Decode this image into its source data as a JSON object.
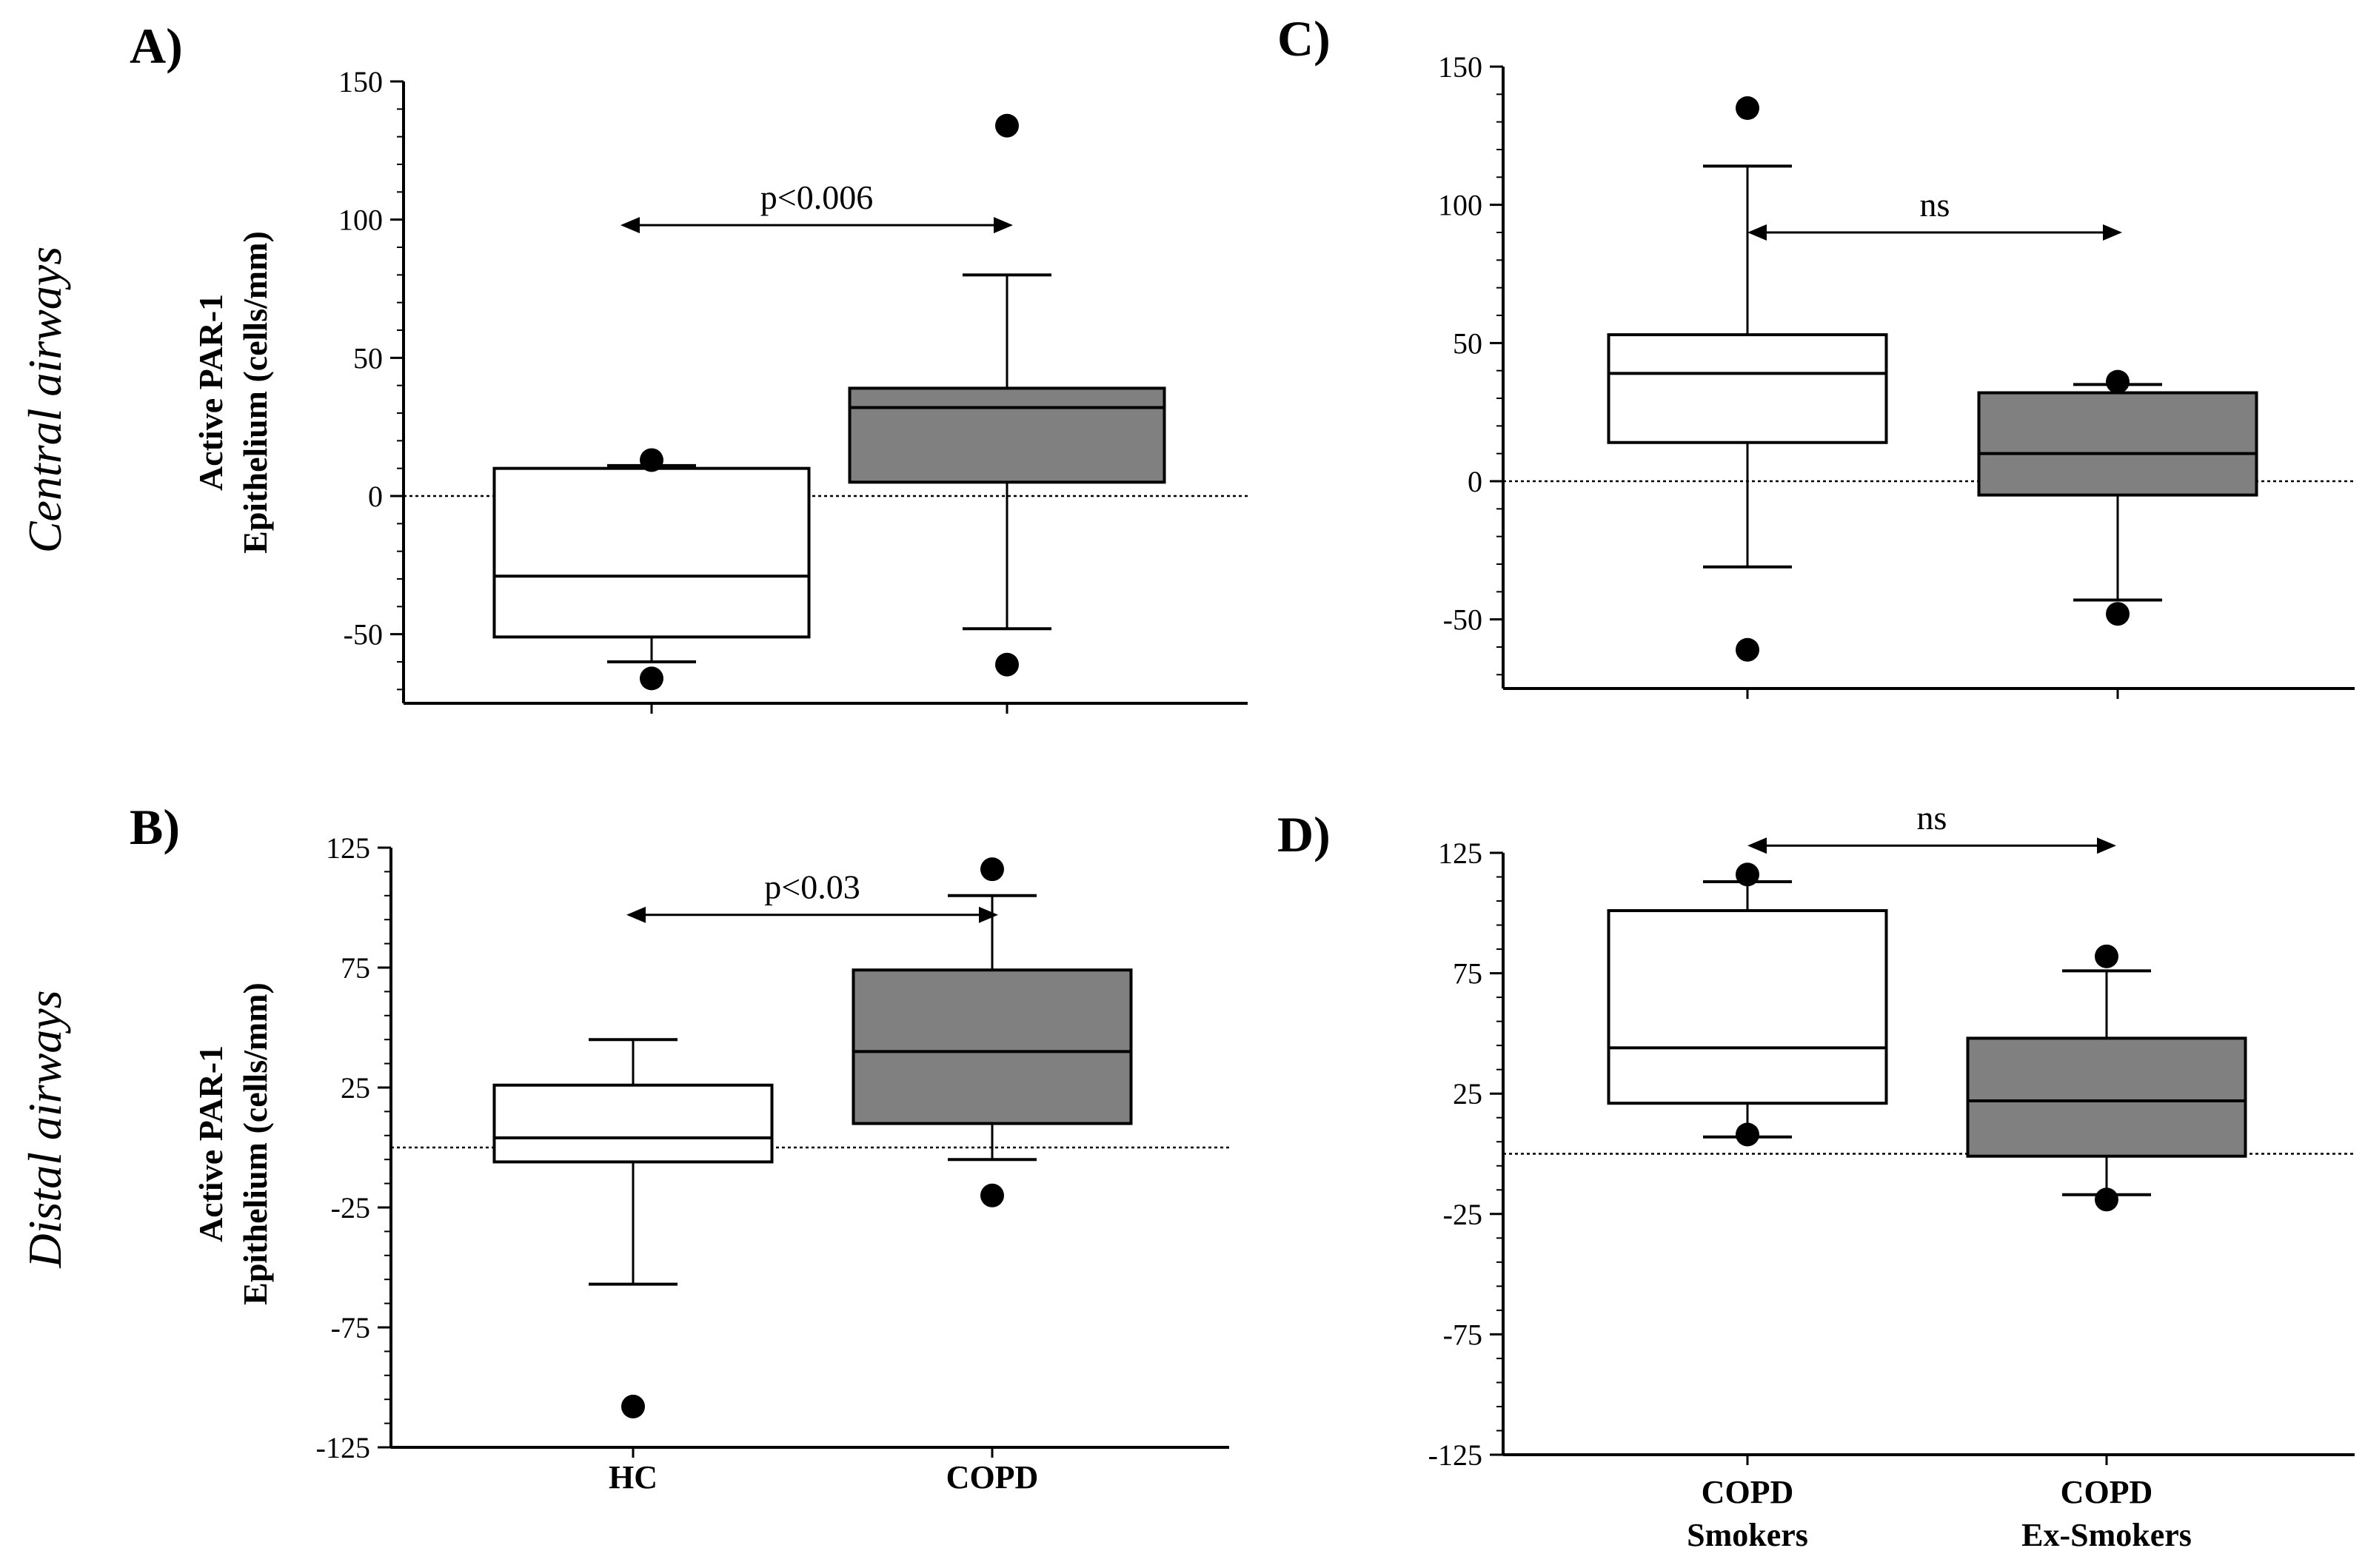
{
  "row_labels": [
    "Central airways",
    "Distal airways"
  ],
  "colors": {
    "group1_fill": "#ffffff",
    "group2_fill": "#808080",
    "stroke": "#000000",
    "outlier": "#000000"
  },
  "chart_data": [
    {
      "panel": "A)",
      "type": "box",
      "ylabel": [
        "Active PAR-1",
        "Epithelium (cells/mm)"
      ],
      "ylim": [
        -75,
        150
      ],
      "yticks": [
        -50,
        0,
        50,
        100,
        150
      ],
      "categories": [
        "HC",
        "COPD"
      ],
      "show_category_labels": false,
      "boxes": [
        {
          "name": "HC",
          "whisker_low": -60,
          "q1": -51,
          "median": -29,
          "q3": 10,
          "whisker_high": 11,
          "outliers": [
            -66,
            13
          ]
        },
        {
          "name": "COPD",
          "whisker_low": -48,
          "q1": 5,
          "median": 32,
          "q3": 39,
          "whisker_high": 80,
          "outliers": [
            -61,
            134
          ]
        }
      ],
      "annotation": {
        "text": "p<0.006",
        "from": 0,
        "to": 1,
        "y": 98
      }
    },
    {
      "panel": "B)",
      "type": "box",
      "ylabel": [
        "Active PAR-1",
        "Epithelium (cells/mm)"
      ],
      "ylim": [
        -125,
        125
      ],
      "yticks": [
        -125,
        -75,
        -25,
        25,
        75,
        125
      ],
      "categories": [
        "HC",
        "COPD"
      ],
      "show_category_labels": true,
      "boxes": [
        {
          "name": "HC",
          "whisker_low": -57,
          "q1": -6,
          "median": 4,
          "q3": 26,
          "whisker_high": 45,
          "outliers": [
            -108
          ]
        },
        {
          "name": "COPD",
          "whisker_low": -5,
          "q1": 10,
          "median": 40,
          "q3": 74,
          "whisker_high": 105,
          "outliers": [
            -20,
            116
          ]
        }
      ],
      "annotation": {
        "text": "p<0.03",
        "from": 0,
        "to": 1,
        "y": 97
      }
    },
    {
      "panel": "C)",
      "type": "box",
      "ylabel": [],
      "ylim": [
        -75,
        150
      ],
      "yticks": [
        -50,
        0,
        50,
        100,
        150
      ],
      "categories": [
        "COPD Smokers",
        "COPD Ex-Smokers"
      ],
      "show_category_labels": false,
      "boxes": [
        {
          "name": "COPD Smokers",
          "whisker_low": -31,
          "q1": 14,
          "median": 39,
          "q3": 53,
          "whisker_high": 114,
          "outliers": [
            -61,
            135
          ]
        },
        {
          "name": "COPD Ex-Smokers",
          "whisker_low": -43,
          "q1": -5,
          "median": 10,
          "q3": 32,
          "whisker_high": 35,
          "outliers": [
            -48,
            36
          ]
        }
      ],
      "annotation": {
        "text": "ns",
        "from": 0,
        "to": 1,
        "y": 90
      }
    },
    {
      "panel": "D)",
      "type": "box",
      "ylabel": [],
      "ylim": [
        -125,
        125
      ],
      "yticks": [
        -125,
        -75,
        -25,
        25,
        75,
        125
      ],
      "categories": [
        "COPD Smokers",
        "COPD Ex-Smokers"
      ],
      "category_lines": [
        [
          "COPD",
          "Smokers"
        ],
        [
          "COPD",
          "Ex-Smokers"
        ]
      ],
      "show_category_labels": true,
      "boxes": [
        {
          "name": "COPD Smokers",
          "whisker_low": 7,
          "q1": 21,
          "median": 44,
          "q3": 101,
          "whisker_high": 113,
          "outliers": [
            8,
            116
          ]
        },
        {
          "name": "COPD Ex-Smokers",
          "whisker_low": -17,
          "q1": -1,
          "median": 22,
          "q3": 48,
          "whisker_high": 76,
          "outliers": [
            -19,
            82
          ]
        }
      ],
      "annotation": {
        "text": "ns",
        "from": 0,
        "to": 1,
        "y": 128
      }
    }
  ]
}
